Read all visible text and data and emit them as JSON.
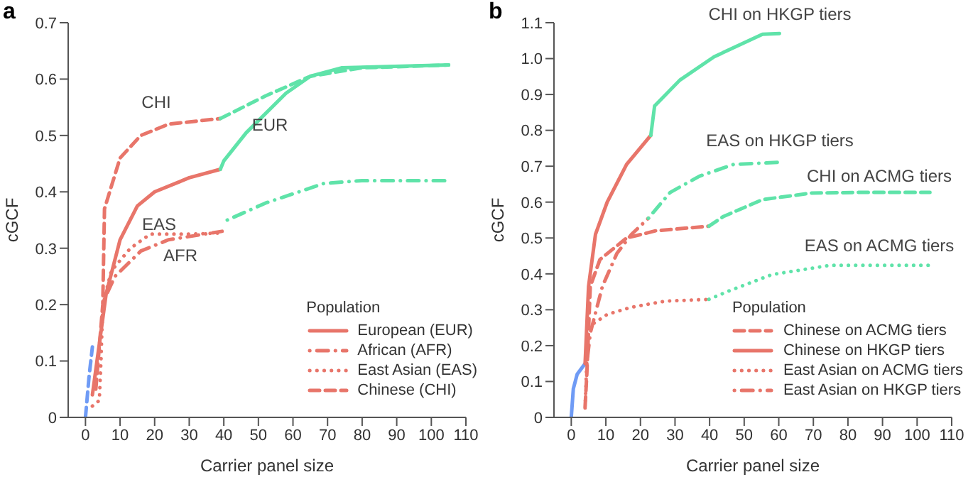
{
  "chart_data": [
    {
      "type": "line",
      "title": "a",
      "xlabel": "Carrier panel size",
      "ylabel": "cGCF",
      "legend_title": "Population",
      "legend": "bottom right",
      "xlim": [
        -5,
        110
      ],
      "xticks": [
        0,
        10,
        20,
        30,
        40,
        50,
        60,
        70,
        80,
        90,
        100,
        110
      ],
      "ylim": [
        0,
        0.7
      ],
      "yticks": [
        0,
        0.1,
        0.2,
        0.3,
        0.4,
        0.5,
        0.6,
        0.7
      ],
      "series": [
        {
          "name": "European (EUR)",
          "color": "#e8756a",
          "line_style": "solid",
          "x": [
            2,
            4,
            6,
            10,
            15,
            20,
            30,
            39
          ],
          "values": [
            0.04,
            0.13,
            0.22,
            0.315,
            0.375,
            0.4,
            0.425,
            0.44
          ]
        },
        {
          "color": "#5fe3a9",
          "line_style": "solid",
          "x": [
            39,
            40,
            46.5,
            58,
            65,
            74,
            105
          ],
          "values": [
            0.44,
            0.455,
            0.505,
            0.575,
            0.605,
            0.62,
            0.625
          ]
        },
        {
          "name": "African (AFR)",
          "color": "#e8756a",
          "line_style": "dashdot",
          "x": [
            5.5,
            8.5,
            16,
            24,
            39.5
          ],
          "values": [
            0.21,
            0.25,
            0.295,
            0.315,
            0.33
          ]
        },
        {
          "color": "#5fe3a9",
          "line_style": "dashdot",
          "x": [
            41,
            52,
            69,
            80,
            105
          ],
          "values": [
            0.35,
            0.38,
            0.415,
            0.42,
            0.42
          ]
        },
        {
          "name": "East Asian (EAS)",
          "color": "#e8756a",
          "line_style": "dotted",
          "x": [
            2,
            4,
            4.5,
            5,
            7.5,
            13,
            18.7,
            30,
            39
          ],
          "values": [
            0.02,
            0.03,
            0.1,
            0.2,
            0.26,
            0.3,
            0.325,
            0.325,
            0.327
          ]
        },
        {
          "color": "#6f9bf5",
          "line_style": "dashed",
          "x": [
            0,
            1,
            2
          ],
          "values": [
            0,
            0.07,
            0.125
          ]
        },
        {
          "name": "Chinese (CHI)",
          "color": "#e8756a",
          "line_style": "dashed",
          "x": [
            3,
            5,
            5.5,
            10,
            16,
            24,
            39
          ],
          "values": [
            0.05,
            0.2,
            0.37,
            0.46,
            0.5,
            0.52,
            0.53
          ]
        },
        {
          "color": "#5fe3a9",
          "line_style": "dashed",
          "x": [
            39,
            52,
            65,
            80,
            105
          ],
          "values": [
            0.53,
            0.57,
            0.605,
            0.62,
            0.625
          ]
        }
      ],
      "annotations": [
        "CHI",
        "EUR",
        "EAS",
        "AFR"
      ]
    },
    {
      "type": "line",
      "title": "b",
      "xlabel": "Carrier panel size",
      "ylabel": "cGCF",
      "legend_title": "Population",
      "legend": "bottom right",
      "xlim": [
        -5,
        110
      ],
      "xticks": [
        0,
        10,
        20,
        30,
        40,
        50,
        60,
        70,
        80,
        90,
        100,
        110
      ],
      "ylim": [
        0,
        1.1
      ],
      "yticks": [
        0,
        0.1,
        0.2,
        0.3,
        0.4,
        0.5,
        0.6,
        0.7,
        0.8,
        0.9,
        {
          "value": 1,
          "label": "1.0"
        },
        1.1
      ],
      "series": [
        {
          "name": "Chinese on ACMG tiers",
          "color": "#e8756a",
          "line_style": "dashed",
          "x": [
            4,
            4.5,
            5.5,
            8.3,
            16,
            24.4,
            39.8
          ],
          "values": [
            0.03,
            0.12,
            0.365,
            0.44,
            0.5,
            0.52,
            0.533
          ]
        },
        {
          "color": "#5fe3a9",
          "line_style": "dashed",
          "x": [
            39.8,
            44,
            55.3,
            69.3,
            83,
            103.7
          ],
          "values": [
            0.533,
            0.56,
            0.607,
            0.625,
            0.627,
            0.627
          ]
        },
        {
          "color": "#6f9bf5",
          "line_style": "solid",
          "x": [
            0,
            0.6,
            1.7,
            4
          ],
          "values": [
            0,
            0.08,
            0.12,
            0.15
          ]
        },
        {
          "name": "Chinese on HKGP tiers",
          "color": "#e8756a",
          "line_style": "solid",
          "x": [
            4,
            5,
            7,
            10.4,
            16,
            23
          ],
          "values": [
            0.15,
            0.365,
            0.51,
            0.6,
            0.705,
            0.786
          ]
        },
        {
          "color": "#5fe3a9",
          "line_style": "solid",
          "x": [
            23,
            24.1,
            31.4,
            41.3,
            55.3,
            60.2
          ],
          "values": [
            0.786,
            0.868,
            0.94,
            1.005,
            1.068,
            1.07
          ]
        },
        {
          "name": "East Asian on ACMG tiers",
          "color": "#e8756a",
          "line_style": "dotted",
          "x": [
            4,
            4.8,
            6.2,
            10.4,
            17.4,
            27.2,
            39.8
          ],
          "values": [
            0.026,
            0.235,
            0.26,
            0.287,
            0.307,
            0.324,
            0.329
          ]
        },
        {
          "color": "#5fe3a9",
          "line_style": "dotted",
          "x": [
            39.8,
            45.5,
            58,
            75,
            103.7
          ],
          "values": [
            0.329,
            0.352,
            0.398,
            0.424,
            0.424
          ]
        },
        {
          "name": "East Asian on HKGP tiers",
          "color": "#e8756a",
          "line_style": "dashdot",
          "x": [
            4.5,
            5.5,
            9,
            13.2,
            17.4,
            22.3
          ],
          "values": [
            0.15,
            0.235,
            0.365,
            0.457,
            0.51,
            0.555
          ]
        },
        {
          "color": "#5fe3a9",
          "line_style": "dashdot",
          "x": [
            22.3,
            28.6,
            37,
            46.9,
            60.2
          ],
          "values": [
            0.555,
            0.627,
            0.672,
            0.705,
            0.711
          ]
        }
      ],
      "annotations": [
        "CHI on HKGP tiers",
        "EAS on HKGP tiers",
        "CHI on ACMG tiers",
        "EAS on ACMG tiers"
      ]
    }
  ]
}
